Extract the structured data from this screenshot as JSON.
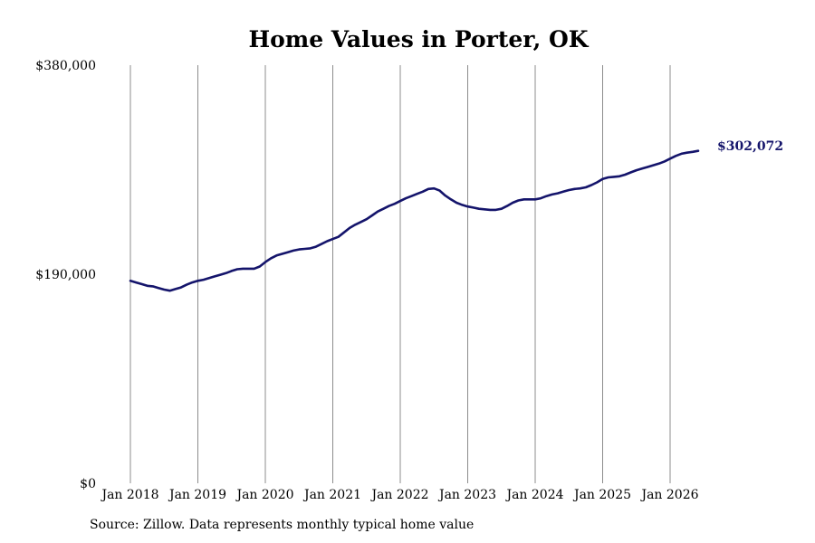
{
  "chart_data": {
    "type": "line",
    "title": "Home Values in Porter, OK",
    "xlabel": "",
    "ylabel": "",
    "ylim": [
      0,
      380000
    ],
    "y_ticks": [
      0,
      190000,
      380000
    ],
    "y_tick_labels": [
      "$0",
      "$190,000",
      "$380,000"
    ],
    "x_ticks": [
      "2018-01",
      "2019-01",
      "2020-01",
      "2021-01",
      "2022-01",
      "2023-01",
      "2024-01",
      "2025-01",
      "2026-01"
    ],
    "x_tick_labels": [
      "Jan 2018",
      "Jan 2019",
      "Jan 2020",
      "Jan 2021",
      "Jan 2022",
      "Jan 2023",
      "Jan 2024",
      "Jan 2025",
      "Jan 2026"
    ],
    "grid": "vertical",
    "line_color": "#14146b",
    "end_label": "$302,072",
    "series": [
      {
        "x": [
          "2018-01",
          "2018-02",
          "2018-03",
          "2018-04",
          "2018-05",
          "2018-06",
          "2018-07",
          "2018-08",
          "2018-09",
          "2018-10",
          "2018-11",
          "2018-12",
          "2019-01",
          "2019-02",
          "2019-03",
          "2019-04",
          "2019-05",
          "2019-06",
          "2019-07",
          "2019-08",
          "2019-09",
          "2019-10",
          "2019-11",
          "2019-12",
          "2020-01",
          "2020-02",
          "2020-03",
          "2020-04",
          "2020-05",
          "2020-06",
          "2020-07",
          "2020-08",
          "2020-09",
          "2020-10",
          "2020-11",
          "2020-12",
          "2021-01",
          "2021-02",
          "2021-03",
          "2021-04",
          "2021-05",
          "2021-06",
          "2021-07",
          "2021-08",
          "2021-09",
          "2021-10",
          "2021-11",
          "2021-12",
          "2022-01",
          "2022-02",
          "2022-03",
          "2022-04",
          "2022-05",
          "2022-06",
          "2022-07",
          "2022-08",
          "2022-09",
          "2022-10",
          "2022-11",
          "2022-12",
          "2023-01",
          "2023-02",
          "2023-03",
          "2023-04",
          "2023-05",
          "2023-06",
          "2023-07",
          "2023-08",
          "2023-09",
          "2023-10",
          "2023-11",
          "2023-12",
          "2024-01",
          "2024-02",
          "2024-03",
          "2024-04",
          "2024-05",
          "2024-06",
          "2024-07",
          "2024-08",
          "2024-09",
          "2024-10",
          "2024-11",
          "2024-12",
          "2025-01",
          "2025-02",
          "2025-03",
          "2025-04",
          "2025-05",
          "2025-06",
          "2025-07",
          "2025-08",
          "2025-09",
          "2025-10",
          "2025-11",
          "2025-12",
          "2026-01",
          "2026-02",
          "2026-03",
          "2026-04",
          "2026-05",
          "2026-06"
        ],
        "values": [
          184000,
          182500,
          181000,
          179500,
          179000,
          177500,
          176000,
          175000,
          176500,
          178000,
          180500,
          182500,
          184000,
          185000,
          186500,
          188000,
          189500,
          191000,
          193000,
          194500,
          195000,
          195000,
          195000,
          197000,
          201000,
          204500,
          207000,
          208500,
          210000,
          211500,
          212500,
          213000,
          213500,
          215000,
          217500,
          220000,
          222000,
          224000,
          228000,
          232000,
          235000,
          237500,
          240000,
          243500,
          247000,
          249500,
          252000,
          254000,
          256500,
          259000,
          261000,
          263000,
          265000,
          267500,
          268000,
          266000,
          261500,
          258000,
          255000,
          253000,
          251500,
          250500,
          249500,
          249000,
          248500,
          248500,
          249500,
          252000,
          255000,
          257000,
          258000,
          258000,
          258000,
          259000,
          261000,
          262500,
          263500,
          265000,
          266500,
          267500,
          268000,
          269000,
          271000,
          273500,
          276500,
          278000,
          278500,
          279000,
          280500,
          282500,
          284500,
          286000,
          287500,
          289000,
          290500,
          292500,
          295000,
          297500,
          299500,
          300500,
          301200,
          302072
        ]
      }
    ]
  },
  "source_note": "Source: Zillow. Data represents monthly typical home value"
}
